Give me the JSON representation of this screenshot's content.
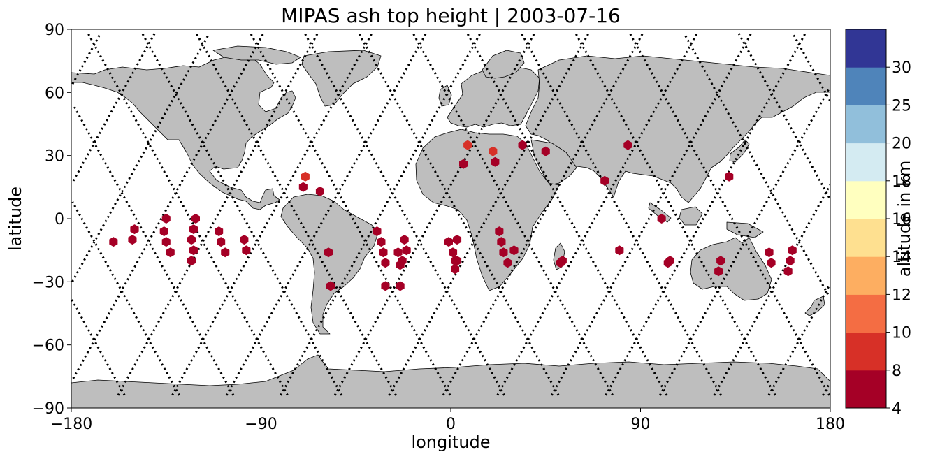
{
  "chart_data": {
    "type": "scatter",
    "title": "MIPAS ash top height | 2003-07-16",
    "xlabel": "longitude",
    "ylabel": "latitude",
    "xlim": [
      -180,
      180
    ],
    "ylim": [
      -90,
      90
    ],
    "x_ticks": [
      -180,
      -90,
      0,
      90,
      180
    ],
    "y_ticks": [
      -90,
      -60,
      -30,
      0,
      30,
      60,
      90
    ],
    "grid": false,
    "background_map": "world coastlines, land filled grey",
    "colors": {
      "land": "#bebebe",
      "coast": "#000000",
      "track": "#000000"
    },
    "colorbar": {
      "label": "altitude in km",
      "boundaries": [
        4,
        8,
        10,
        12,
        14,
        16,
        18,
        20,
        25,
        30
      ],
      "tick_labels": [
        "4",
        "8",
        "10",
        "12",
        "14",
        "16",
        "18",
        "20",
        "25",
        "30"
      ],
      "colors": [
        "#a50026",
        "#d73027",
        "#f46d43",
        "#fdae61",
        "#fee090",
        "#ffffbf",
        "#d4ebf2",
        "#91bfdb",
        "#4f84ba",
        "#313695"
      ]
    },
    "series": [
      {
        "marker": "hexagon",
        "points": [
          {
            "lon": -160,
            "lat": -11,
            "alt": 6
          },
          {
            "lon": -150,
            "lat": -5,
            "alt": 6
          },
          {
            "lon": -151,
            "lat": -10,
            "alt": 6
          },
          {
            "lon": -135,
            "lat": 0,
            "alt": 6
          },
          {
            "lon": -136,
            "lat": -6,
            "alt": 6
          },
          {
            "lon": -135,
            "lat": -11,
            "alt": 6
          },
          {
            "lon": -133,
            "lat": -16,
            "alt": 6
          },
          {
            "lon": -121,
            "lat": 0,
            "alt": 6
          },
          {
            "lon": -122,
            "lat": -5,
            "alt": 6
          },
          {
            "lon": -123,
            "lat": -10,
            "alt": 6
          },
          {
            "lon": -122,
            "lat": -15,
            "alt": 6
          },
          {
            "lon": -123,
            "lat": -20,
            "alt": 6
          },
          {
            "lon": -110,
            "lat": -6,
            "alt": 6
          },
          {
            "lon": -109,
            "lat": -11,
            "alt": 6
          },
          {
            "lon": -107,
            "lat": -16,
            "alt": 6
          },
          {
            "lon": -98,
            "lat": -10,
            "alt": 6
          },
          {
            "lon": -97,
            "lat": -15,
            "alt": 6
          },
          {
            "lon": -69,
            "lat": 20,
            "alt": 9
          },
          {
            "lon": -70,
            "lat": 15,
            "alt": 6
          },
          {
            "lon": -62,
            "lat": 13,
            "alt": 6
          },
          {
            "lon": -58,
            "lat": -16,
            "alt": 6
          },
          {
            "lon": -57,
            "lat": -32,
            "alt": 6
          },
          {
            "lon": -35,
            "lat": -6,
            "alt": 6
          },
          {
            "lon": -33,
            "lat": -11,
            "alt": 6
          },
          {
            "lon": -32,
            "lat": -16,
            "alt": 6
          },
          {
            "lon": -31,
            "lat": -21,
            "alt": 6
          },
          {
            "lon": -31,
            "lat": -32,
            "alt": 6
          },
          {
            "lon": -25,
            "lat": -16,
            "alt": 6
          },
          {
            "lon": -23,
            "lat": -20,
            "alt": 6
          },
          {
            "lon": -24,
            "lat": -22,
            "alt": 6
          },
          {
            "lon": -24,
            "lat": -32,
            "alt": 6
          },
          {
            "lon": -22,
            "lat": -10,
            "alt": 6
          },
          {
            "lon": -21,
            "lat": -15,
            "alt": 6
          },
          {
            "lon": -1,
            "lat": -11,
            "alt": 6
          },
          {
            "lon": 3,
            "lat": -10,
            "alt": 6
          },
          {
            "lon": 1,
            "lat": -16,
            "alt": 6
          },
          {
            "lon": 2,
            "lat": -20,
            "alt": 6
          },
          {
            "lon": 3,
            "lat": -20,
            "alt": 6
          },
          {
            "lon": 2,
            "lat": -24,
            "alt": 6
          },
          {
            "lon": 8,
            "lat": 35,
            "alt": 9
          },
          {
            "lon": 6,
            "lat": 26,
            "alt": 6
          },
          {
            "lon": 20,
            "lat": 32,
            "alt": 9
          },
          {
            "lon": 21,
            "lat": 27,
            "alt": 6
          },
          {
            "lon": 23,
            "lat": -6,
            "alt": 6
          },
          {
            "lon": 24,
            "lat": -11,
            "alt": 6
          },
          {
            "lon": 25,
            "lat": -16,
            "alt": 6
          },
          {
            "lon": 27,
            "lat": -21,
            "alt": 6
          },
          {
            "lon": 30,
            "lat": -15,
            "alt": 6
          },
          {
            "lon": 34,
            "lat": 35,
            "alt": 6
          },
          {
            "lon": 45,
            "lat": 32,
            "alt": 6
          },
          {
            "lon": 52,
            "lat": -21,
            "alt": 6
          },
          {
            "lon": 53,
            "lat": -20,
            "alt": 6
          },
          {
            "lon": 73,
            "lat": 18,
            "alt": 6
          },
          {
            "lon": 80,
            "lat": -15,
            "alt": 6
          },
          {
            "lon": 84,
            "lat": 35,
            "alt": 6
          },
          {
            "lon": 100,
            "lat": 0,
            "alt": 6
          },
          {
            "lon": 103,
            "lat": -21,
            "alt": 6
          },
          {
            "lon": 104,
            "lat": -20,
            "alt": 6
          },
          {
            "lon": 127,
            "lat": -25,
            "alt": 6
          },
          {
            "lon": 128,
            "lat": -20,
            "alt": 6
          },
          {
            "lon": 132,
            "lat": 20,
            "alt": 6
          },
          {
            "lon": 151,
            "lat": -16,
            "alt": 6
          },
          {
            "lon": 152,
            "lat": -21,
            "alt": 6
          },
          {
            "lon": 160,
            "lat": -25,
            "alt": 6
          },
          {
            "lon": 161,
            "lat": -20,
            "alt": 6
          },
          {
            "lon": 162,
            "lat": -15,
            "alt": 6
          }
        ]
      }
    ]
  }
}
